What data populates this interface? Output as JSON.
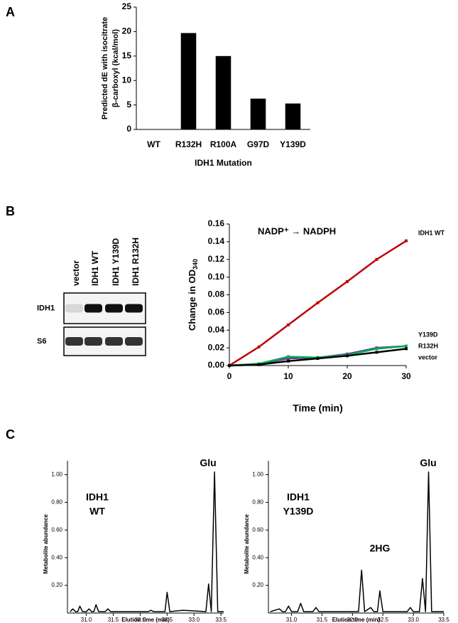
{
  "panels": [
    "A",
    "B",
    "C"
  ],
  "blot": {
    "lanes": [
      {
        "label": "vector",
        "color": "#000000"
      },
      {
        "label": "IDH1 WT",
        "color": "#c00000"
      },
      {
        "label": "IDH1 Y139D",
        "color": "#7030a0"
      },
      {
        "label": "IDH1 R132H",
        "color": "#00b050"
      }
    ],
    "rows": [
      "IDH1",
      "S6"
    ]
  },
  "chart_data": [
    {
      "type": "bar",
      "y_label": [
        "Predicted dE with isocitrate",
        "β-carboxyl (kcal/mol)"
      ],
      "x_label": "IDH1 Mutation",
      "categories": [
        "WT",
        "R132H",
        "R100A",
        "G97D",
        "Y139D"
      ],
      "values": [
        0,
        19.7,
        15.0,
        6.3,
        5.3
      ],
      "color": "#000000",
      "ylim": [
        0,
        25
      ],
      "yticks": [
        0,
        5,
        10,
        15,
        20,
        25
      ]
    },
    {
      "type": "line",
      "annotation": "NADP⁺ → NADPH",
      "x_label": "Time (min)",
      "y_label": "Change in OD",
      "y_label_sub": "340",
      "x": [
        0,
        5,
        10,
        15,
        20,
        25,
        30
      ],
      "series": [
        {
          "name": "IDH1 WT",
          "color": "#c00000",
          "values": [
            0,
            0.021,
            0.046,
            0.071,
            0.095,
            0.12,
            0.141
          ]
        },
        {
          "name": "Y139D",
          "color": "#7030a0",
          "values": [
            0,
            0.002,
            0.008,
            0.009,
            0.013,
            0.02,
            0.022
          ]
        },
        {
          "name": "R132H",
          "color": "#00b050",
          "values": [
            0,
            0.002,
            0.01,
            0.009,
            0.012,
            0.019,
            0.022
          ]
        },
        {
          "name": "vector",
          "color": "#000000",
          "values": [
            0,
            0.001,
            0.005,
            0.008,
            0.011,
            0.015,
            0.019
          ]
        }
      ],
      "xlim": [
        0,
        30
      ],
      "xticks": [
        0,
        10,
        20,
        30
      ],
      "ylim": [
        0,
        0.16
      ],
      "yticks": [
        {
          "value": 0,
          "label": "0.00"
        },
        {
          "value": 0.02,
          "label": "0.02"
        },
        {
          "value": 0.04,
          "label": "0.04"
        },
        {
          "value": 0.06,
          "label": "0.06"
        },
        {
          "value": 0.08,
          "label": "0.08"
        },
        {
          "value": 0.1,
          "label": "0.10"
        },
        {
          "value": 0.12,
          "label": "0.12"
        },
        {
          "value": 0.14,
          "label": "0.14"
        },
        {
          "value": 0.16,
          "label": "0.16"
        }
      ]
    },
    {
      "type": "chromatogram",
      "sample_label": [
        "IDH1",
        "WT"
      ],
      "sample_color": "#c00000",
      "annotations": [
        "Glu"
      ],
      "x_label": "Elution time (min)",
      "y_label": "Metabolite abundance",
      "x": [
        30.7,
        30.75,
        30.8,
        30.84,
        30.88,
        30.93,
        31.0,
        31.05,
        31.1,
        31.14,
        31.18,
        31.23,
        31.35,
        31.4,
        31.45,
        31.6,
        32.15,
        32.2,
        32.25,
        32.46,
        32.5,
        32.55,
        32.8,
        33.22,
        33.27,
        33.32,
        33.38,
        33.44,
        33.55
      ],
      "values": [
        0.01,
        0.03,
        0.01,
        0.01,
        0.05,
        0.01,
        0.01,
        0.03,
        0.01,
        0.01,
        0.06,
        0.01,
        0.01,
        0.03,
        0.01,
        0.01,
        0.01,
        0.02,
        0.01,
        0.01,
        0.15,
        0.01,
        0.02,
        0.01,
        0.21,
        0.01,
        1.02,
        0.01,
        0.01
      ],
      "color": "#000000",
      "xlim": [
        30.65,
        33.55
      ],
      "ylim": [
        0,
        1.1
      ],
      "xticks": [
        {
          "value": 31,
          "label": "31.0"
        },
        31.5,
        {
          "value": 32,
          "label": "32.0"
        },
        32.5,
        {
          "value": 33,
          "label": "33.0"
        },
        33.5
      ],
      "yticks": [
        {
          "value": 0.2,
          "label": "0.20"
        },
        {
          "value": 0.4,
          "label": "0.40"
        },
        {
          "value": 0.6,
          "label": "0.60"
        },
        {
          "value": 0.8,
          "label": "0.80"
        },
        {
          "value": 1,
          "label": "1.00"
        }
      ]
    },
    {
      "type": "chromatogram",
      "sample_label": [
        "IDH1",
        "Y139D"
      ],
      "sample_color": "#7030a0",
      "annotations": [
        "Glu",
        "2HG"
      ],
      "x_label": "Elution time (min)",
      "y_label": "Metabolite abundance",
      "x": [
        30.65,
        30.8,
        30.85,
        30.9,
        30.95,
        31.0,
        31.1,
        31.15,
        31.2,
        31.35,
        31.4,
        31.45,
        31.75,
        32.1,
        32.15,
        32.2,
        32.3,
        32.35,
        32.41,
        32.45,
        32.5,
        32.9,
        32.95,
        33.0,
        33.1,
        33.15,
        33.2,
        33.25,
        33.3,
        33.5
      ],
      "values": [
        0.01,
        0.03,
        0.01,
        0.01,
        0.05,
        0.01,
        0.01,
        0.07,
        0.01,
        0.01,
        0.04,
        0.01,
        0.01,
        0.01,
        0.31,
        0.01,
        0.04,
        0.01,
        0.01,
        0.16,
        0.01,
        0.01,
        0.04,
        0.01,
        0.01,
        0.25,
        0.01,
        1.02,
        0.01,
        0.01
      ],
      "color": "#000000",
      "xlim": [
        30.62,
        33.5
      ],
      "ylim": [
        0,
        1.1
      ],
      "xticks": [
        {
          "value": 31,
          "label": "31.0"
        },
        31.5,
        {
          "value": 32,
          "label": "32.0"
        },
        32.5,
        {
          "value": 33,
          "label": "33.0"
        },
        33.5
      ],
      "yticks": [
        {
          "value": 0.2,
          "label": "0.20"
        },
        {
          "value": 0.4,
          "label": "0.40"
        },
        {
          "value": 0.6,
          "label": "0.60"
        },
        {
          "value": 0.8,
          "label": "0.80"
        },
        {
          "value": 1,
          "label": "1.00"
        }
      ]
    }
  ]
}
